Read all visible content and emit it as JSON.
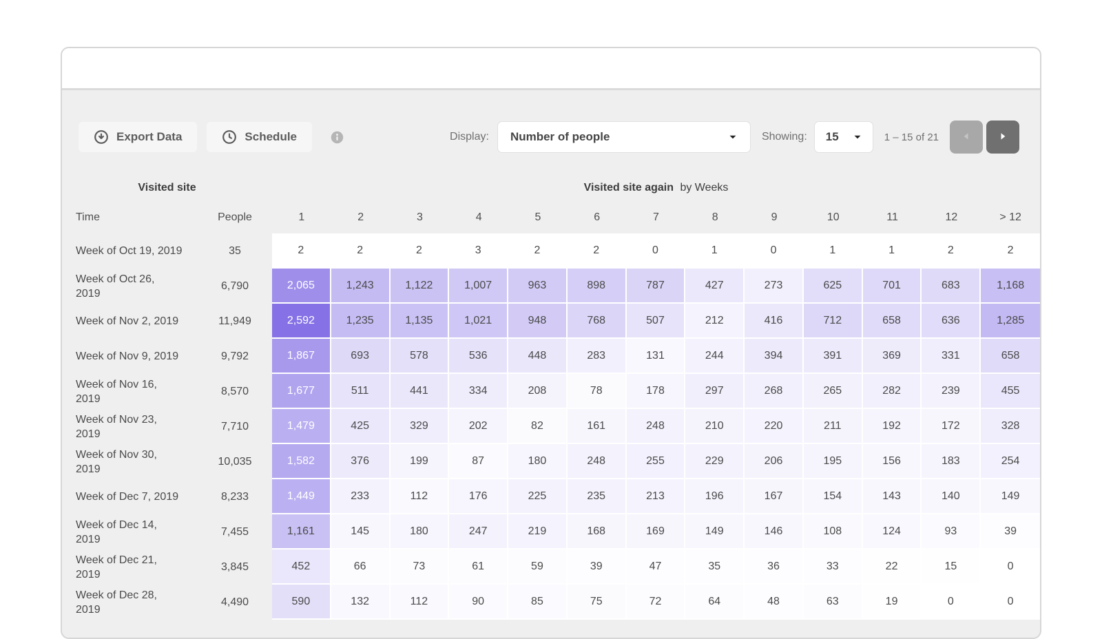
{
  "toolbar": {
    "export_label": "Export Data",
    "schedule_label": "Schedule",
    "display_label": "Display:",
    "display_value": "Number of people",
    "showing_label": "Showing:",
    "page_size": "15",
    "range_text": "1 – 15 of 21"
  },
  "icons": {
    "export": "arrow-down-circle",
    "schedule": "clock",
    "info": "info-circle",
    "select_caret": "caret-down",
    "prev": "caret-left",
    "next": "caret-right"
  },
  "colors": {
    "heat_max": "#8672e6",
    "panel_bg": "#efefef",
    "next_button_bg": "#707070",
    "prev_button_bg": "#a8a8a8"
  },
  "table": {
    "group_left_label": "Visited site",
    "group_right_bold": "Visited site again",
    "group_right_suffix": "by Weeks",
    "time_header": "Time",
    "people_header": "People",
    "week_headers": [
      "1",
      "2",
      "3",
      "4",
      "5",
      "6",
      "7",
      "8",
      "9",
      "10",
      "11",
      "12",
      "> 12"
    ],
    "heat_max": 2592,
    "heat_rgb": [
      134,
      114,
      230
    ],
    "white_text_threshold": 0.52,
    "rows": [
      {
        "time_lines": [
          "Week of Oct 19, 2019"
        ],
        "people": 35,
        "values": [
          2,
          2,
          2,
          3,
          2,
          2,
          0,
          1,
          0,
          1,
          1,
          2,
          2
        ]
      },
      {
        "time_lines": [
          "Week of Oct 26,",
          "2019"
        ],
        "people": 6790,
        "values": [
          2065,
          1243,
          1122,
          1007,
          963,
          898,
          787,
          427,
          273,
          625,
          701,
          683,
          1168
        ]
      },
      {
        "time_lines": [
          "Week of Nov 2, 2019"
        ],
        "people": 11949,
        "values": [
          2592,
          1235,
          1135,
          1021,
          948,
          768,
          507,
          212,
          416,
          712,
          658,
          636,
          1285
        ]
      },
      {
        "time_lines": [
          "Week of Nov 9, 2019"
        ],
        "people": 9792,
        "values": [
          1867,
          693,
          578,
          536,
          448,
          283,
          131,
          244,
          394,
          391,
          369,
          331,
          658
        ]
      },
      {
        "time_lines": [
          "Week of Nov 16,",
          "2019"
        ],
        "people": 8570,
        "values": [
          1677,
          511,
          441,
          334,
          208,
          78,
          178,
          297,
          268,
          265,
          282,
          239,
          455
        ]
      },
      {
        "time_lines": [
          "Week of Nov 23,",
          "2019"
        ],
        "people": 7710,
        "values": [
          1479,
          425,
          329,
          202,
          82,
          161,
          248,
          210,
          220,
          211,
          192,
          172,
          328
        ]
      },
      {
        "time_lines": [
          "Week of Nov 30,",
          "2019"
        ],
        "people": 10035,
        "values": [
          1582,
          376,
          199,
          87,
          180,
          248,
          255,
          229,
          206,
          195,
          156,
          183,
          254
        ]
      },
      {
        "time_lines": [
          "Week of Dec 7, 2019"
        ],
        "people": 8233,
        "values": [
          1449,
          233,
          112,
          176,
          225,
          235,
          213,
          196,
          167,
          154,
          143,
          140,
          149
        ]
      },
      {
        "time_lines": [
          "Week of Dec 14,",
          "2019"
        ],
        "people": 7455,
        "values": [
          1161,
          145,
          180,
          247,
          219,
          168,
          169,
          149,
          146,
          108,
          124,
          93,
          39
        ]
      },
      {
        "time_lines": [
          "Week of Dec 21,",
          "2019"
        ],
        "people": 3845,
        "values": [
          452,
          66,
          73,
          61,
          59,
          39,
          47,
          35,
          36,
          33,
          22,
          15,
          0
        ]
      },
      {
        "time_lines": [
          "Week of Dec 28,",
          "2019"
        ],
        "people": 4490,
        "values": [
          590,
          132,
          112,
          90,
          85,
          75,
          72,
          64,
          48,
          63,
          19,
          0,
          0
        ]
      }
    ]
  }
}
